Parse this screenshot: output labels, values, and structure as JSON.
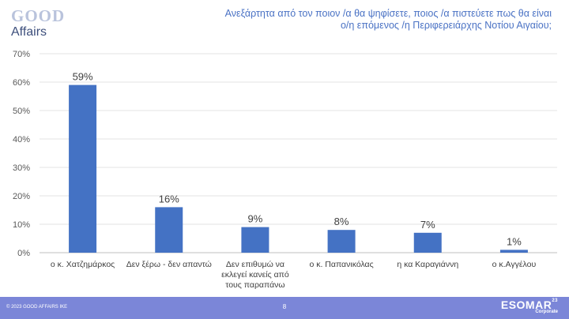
{
  "header": {
    "logo_top": "GOOD",
    "logo_bottom": "Affairs",
    "question": "Ανεξάρτητα από τον ποιον /α θα ψηφίσετε, ποιος /α πιστεύετε πως θα είναι ο/η επόμενος /η Περιφερειάρχης Νοτίου Αιγαίου;"
  },
  "chart_data": {
    "type": "bar",
    "categories": [
      "ο κ. Χατζημάρκος",
      "Δεν ξέρω - δεν απαντώ",
      "Δεν επιθυμώ να εκλεγεί κανείς από τους παραπάνω",
      "ο κ. Παπανικόλας",
      "η κα Καραγιάννη",
      "ο κ.Αγγέλου"
    ],
    "values": [
      59,
      16,
      9,
      8,
      7,
      1
    ],
    "data_labels": [
      "59%",
      "16%",
      "9%",
      "8%",
      "7%",
      "1%"
    ],
    "ylim": [
      0,
      70
    ],
    "yticks": [
      0,
      10,
      20,
      30,
      40,
      50,
      60,
      70
    ],
    "ytick_labels": [
      "0%",
      "10%",
      "20%",
      "30%",
      "40%",
      "50%",
      "60%",
      "70%"
    ],
    "grid": true,
    "bar_color": "#4472c4",
    "title": "",
    "xlabel": "",
    "ylabel": ""
  },
  "footer": {
    "copyright": "© 2023 GOOD AFFAIRS IKE",
    "page": "8",
    "esomar_name": "ESOMAR",
    "esomar_sup": "23",
    "esomar_sub": "Corporate"
  }
}
